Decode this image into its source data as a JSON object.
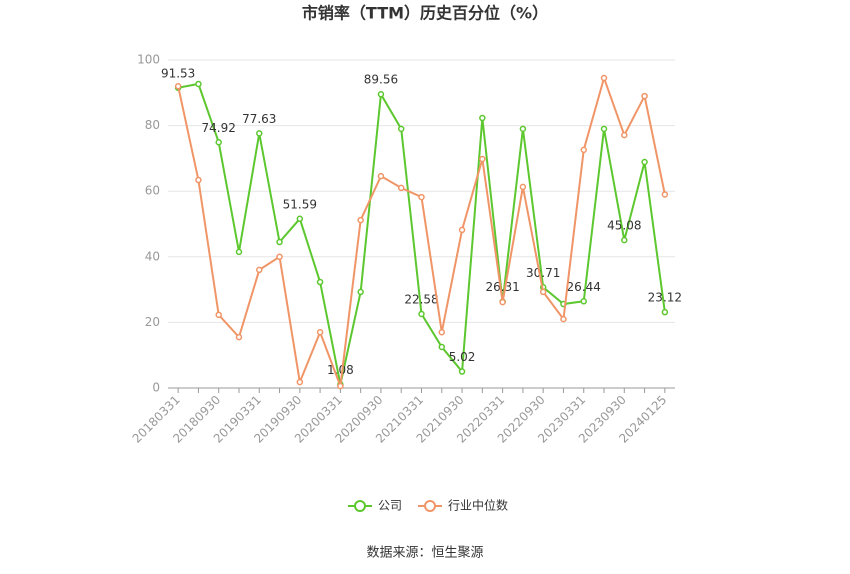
{
  "chart_data": {
    "type": "line",
    "title": "市销率（TTM）历史百分位（%）",
    "source": "数据来源：恒生聚源",
    "categories": [
      "20180331",
      null,
      "20180930",
      null,
      "20190331",
      null,
      "20190930",
      null,
      "20200331",
      null,
      "20200930",
      null,
      "20210331",
      null,
      "20210930",
      null,
      "20220331",
      null,
      "20220930",
      null,
      "20230331",
      null,
      "20230930",
      null,
      "20240125"
    ],
    "series": [
      {
        "name": "公司",
        "color": "#5cc72e",
        "values": [
          91.53,
          92.7,
          74.92,
          41.5,
          77.63,
          44.5,
          51.59,
          32.3,
          1.08,
          29.3,
          89.56,
          79,
          22.58,
          12.5,
          5.02,
          82.3,
          26.31,
          79,
          30.71,
          25.6,
          26.44,
          79,
          45.08,
          68.9,
          23.12
        ],
        "value_labels": [
          "91.53",
          null,
          "74.92",
          null,
          "77.63",
          null,
          "51.59",
          null,
          "1.08",
          null,
          "89.56",
          null,
          "22.58",
          null,
          "5.02",
          null,
          "26.31",
          null,
          "30.71",
          null,
          "26.44",
          null,
          "45.08",
          null,
          "23.12"
        ]
      },
      {
        "name": "行业中位数",
        "color": "#f09567",
        "values": [
          92,
          63.4,
          22.3,
          15.5,
          36,
          40,
          1.8,
          17,
          0.6,
          51.2,
          64.6,
          61,
          58.2,
          17,
          48.2,
          69.8,
          26.2,
          61.3,
          29.3,
          21,
          72.6,
          94.5,
          77.1,
          89,
          59
        ]
      }
    ],
    "ylim": [
      0,
      100
    ],
    "yticks": [
      0,
      20,
      40,
      60,
      80,
      100
    ],
    "grid": true,
    "legend": "bottom"
  }
}
